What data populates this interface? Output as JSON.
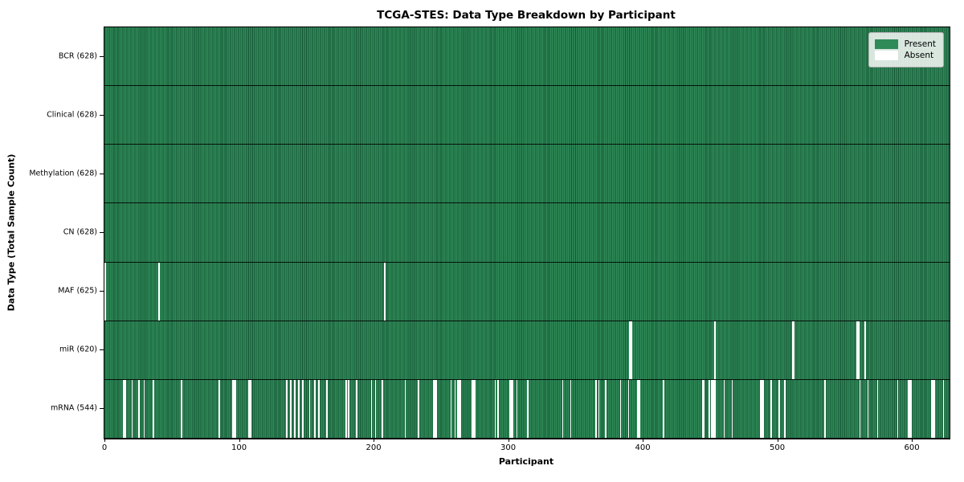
{
  "chart_data": {
    "type": "heatmap",
    "title": "TCGA-STES: Data Type Breakdown by Participant",
    "xlabel": "Participant",
    "ylabel": "Data Type (Total Sample Count)",
    "n_participants": 628,
    "xlim": [
      0,
      628
    ],
    "x_ticks": [
      0,
      100,
      200,
      300,
      400,
      500,
      600
    ],
    "grid": false,
    "legend": [
      "Present",
      "Absent"
    ],
    "legend_position": "upper right",
    "colors": {
      "present": "#2e8b57",
      "present_edge": "#175335",
      "absent": "#ffffff",
      "row_separator": "#000000"
    },
    "rows": [
      {
        "label": "BCR (628)",
        "data_type": "BCR",
        "present_count": 628,
        "absent_participants": []
      },
      {
        "label": "Clinical (628)",
        "data_type": "Clinical",
        "present_count": 628,
        "absent_participants": []
      },
      {
        "label": "Methylation (628)",
        "data_type": "Methylation",
        "present_count": 628,
        "absent_participants": []
      },
      {
        "label": "CN (628)",
        "data_type": "CN",
        "present_count": 628,
        "absent_participants": []
      },
      {
        "label": "MAF (625)",
        "data_type": "MAF",
        "present_count": 625,
        "absent_participants": [
          0,
          40,
          208
        ]
      },
      {
        "label": "miR (620)",
        "data_type": "miR",
        "present_count": 620,
        "absent_participants": [
          390,
          391,
          453,
          511,
          512,
          559,
          560,
          565
        ]
      },
      {
        "label": "mRNA (544)",
        "data_type": "mRNA",
        "present_count": 544,
        "absent_participants": [
          14,
          15,
          20,
          25,
          29,
          36,
          57,
          85,
          95,
          96,
          97,
          107,
          108,
          135,
          138,
          141,
          144,
          147,
          152,
          156,
          159,
          165,
          179,
          181,
          187,
          198,
          201,
          206,
          223,
          233,
          244,
          245,
          246,
          257,
          260,
          262,
          263,
          264,
          273,
          274,
          275,
          290,
          292,
          301,
          302,
          303,
          306,
          314,
          340,
          346,
          365,
          367,
          372,
          383,
          389,
          396,
          397,
          415,
          444,
          445,
          449,
          451,
          452,
          453,
          460,
          466,
          487,
          488,
          489,
          495,
          501,
          505,
          535,
          561,
          567,
          574,
          589,
          597,
          598,
          599,
          614,
          615,
          616,
          623
        ]
      }
    ]
  }
}
